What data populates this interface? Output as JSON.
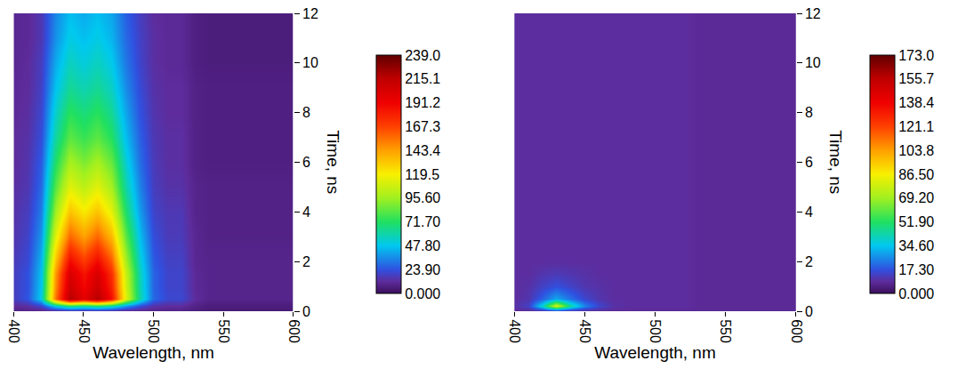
{
  "chart_data": [
    {
      "type": "heatmap",
      "x_label": "Wavelength, nm",
      "y_label": "Time, ns",
      "x": [
        400,
        410,
        420,
        430,
        440,
        450,
        460,
        470,
        480,
        490,
        500,
        510,
        520,
        530,
        540,
        550,
        560,
        570,
        580,
        590,
        600
      ],
      "y": [
        0,
        0.2,
        0.5,
        1,
        1.5,
        2,
        3,
        4,
        5,
        6,
        7,
        8,
        9,
        10,
        11,
        12
      ],
      "z": [
        [
          8,
          8,
          8,
          9,
          10,
          10,
          10,
          9,
          8,
          8,
          8,
          8,
          8,
          6,
          5,
          5,
          5,
          5,
          5,
          5,
          5
        ],
        [
          11,
          13,
          20,
          50,
          68,
          62,
          68,
          59,
          38,
          23,
          14,
          12,
          12,
          8,
          6,
          6,
          6,
          6,
          6,
          6,
          6
        ],
        [
          18,
          25,
          50,
          155,
          218,
          197,
          218,
          186,
          113,
          60,
          29,
          21,
          21,
          12,
          9,
          9,
          9,
          9,
          9,
          9,
          9
        ],
        [
          18,
          24,
          48,
          148,
          208,
          188,
          208,
          178,
          108,
          58,
          28,
          20,
          20,
          11,
          9,
          9,
          9,
          9,
          9,
          9,
          9
        ],
        [
          18,
          24,
          47,
          145,
          203,
          184,
          203,
          174,
          106,
          57,
          28,
          20,
          20,
          11,
          9,
          9,
          9,
          9,
          9,
          9,
          9
        ],
        [
          17,
          22,
          44,
          134,
          188,
          170,
          188,
          161,
          98,
          53,
          26,
          19,
          19,
          10,
          9,
          9,
          9,
          9,
          9,
          9,
          9
        ],
        [
          15,
          20,
          38,
          113,
          158,
          143,
          158,
          136,
          83,
          46,
          23,
          17,
          17,
          10,
          8,
          8,
          8,
          8,
          8,
          8,
          8
        ],
        [
          14,
          18,
          33,
          96,
          133,
          121,
          133,
          114,
          70,
          39,
          20,
          16,
          16,
          9,
          8,
          8,
          8,
          8,
          8,
          8,
          8
        ],
        [
          13,
          16,
          29,
          82,
          113,
          103,
          113,
          97,
          60,
          34,
          18,
          14,
          14,
          9,
          8,
          8,
          8,
          8,
          8,
          8,
          8
        ],
        [
          12,
          15,
          26,
          71,
          98,
          89,
          98,
          85,
          53,
          30,
          17,
          13,
          13,
          8,
          7,
          7,
          7,
          7,
          7,
          7,
          7
        ],
        [
          12,
          14,
          23,
          61,
          83,
          76,
          83,
          72,
          46,
          27,
          16,
          13,
          13,
          8,
          7,
          7,
          7,
          7,
          7,
          7,
          7
        ],
        [
          11,
          13,
          21,
          54,
          73,
          67,
          73,
          63,
          41,
          24,
          15,
          12,
          12,
          8,
          7,
          7,
          7,
          7,
          7,
          7,
          7
        ],
        [
          11,
          12,
          19,
          47,
          63,
          58,
          63,
          55,
          36,
          22,
          14,
          12,
          12,
          8,
          7,
          7,
          7,
          7,
          7,
          7,
          7
        ],
        [
          10,
          12,
          18,
          42,
          56,
          51,
          56,
          49,
          32,
          20,
          13,
          11,
          11,
          7,
          6,
          6,
          6,
          6,
          6,
          6,
          6
        ],
        [
          10,
          11,
          16,
          37,
          50,
          46,
          50,
          44,
          29,
          19,
          13,
          11,
          11,
          7,
          6,
          6,
          6,
          6,
          6,
          6,
          6
        ],
        [
          10,
          11,
          16,
          35,
          46,
          42,
          46,
          41,
          27,
          18,
          12,
          11,
          11,
          7,
          6,
          6,
          6,
          6,
          6,
          6,
          6
        ]
      ],
      "xlim": [
        400,
        600
      ],
      "xticks": [
        400,
        450,
        500,
        550,
        600
      ],
      "ylim": [
        0,
        12
      ],
      "yticks": [
        0,
        2,
        4,
        6,
        8,
        10,
        12
      ],
      "grid": true,
      "colorbar_range": [
        0,
        239
      ],
      "colorbar_ticks": [
        {
          "value": 0,
          "label": "0.000"
        },
        {
          "value": 23.9,
          "label": "23.90"
        },
        {
          "value": 47.8,
          "label": "47.80"
        },
        {
          "value": 71.7,
          "label": "71.70"
        },
        {
          "value": 95.6,
          "label": "95.60"
        },
        {
          "value": 119.5,
          "label": "119.5"
        },
        {
          "value": 143.4,
          "label": "143.4"
        },
        {
          "value": 167.3,
          "label": "167.3"
        },
        {
          "value": 191.2,
          "label": "191.2"
        },
        {
          "value": 215.1,
          "label": "215.1"
        },
        {
          "value": 239,
          "label": "239.0"
        }
      ]
    },
    {
      "type": "heatmap",
      "x_label": "Wavelength, nm",
      "y_label": "Time, ns",
      "x": [
        400,
        410,
        420,
        430,
        440,
        450,
        460,
        470,
        480,
        490,
        500,
        510,
        520,
        530,
        540,
        550,
        560,
        570,
        580,
        590,
        600
      ],
      "y": [
        0,
        0.2,
        0.5,
        1,
        1.5,
        2,
        3,
        4,
        5,
        6,
        7,
        8,
        9,
        10,
        11,
        12
      ],
      "z": [
        [
          8,
          8,
          8,
          8,
          8,
          8,
          8,
          8,
          8,
          8,
          8,
          8,
          8,
          8,
          8,
          8,
          8,
          8,
          8,
          8,
          8
        ],
        [
          10,
          14,
          40,
          80,
          45,
          25,
          15,
          10,
          9,
          9,
          9,
          9,
          9,
          8,
          8,
          8,
          8,
          8,
          8,
          8,
          8
        ],
        [
          9,
          11,
          20,
          30,
          22,
          15,
          11,
          9,
          9,
          9,
          9,
          9,
          9,
          8,
          8,
          8,
          8,
          8,
          8,
          8,
          8
        ],
        [
          9,
          10,
          14,
          17,
          14,
          11,
          10,
          9,
          9,
          9,
          9,
          9,
          9,
          8,
          8,
          8,
          8,
          8,
          8,
          8,
          8
        ],
        [
          9,
          9,
          11,
          12,
          11,
          10,
          9,
          9,
          9,
          9,
          9,
          9,
          9,
          8,
          8,
          8,
          8,
          8,
          8,
          8,
          8
        ],
        [
          9,
          9,
          9,
          9,
          9,
          9,
          9,
          9,
          9,
          9,
          9,
          9,
          9,
          8,
          8,
          8,
          8,
          8,
          8,
          8,
          8
        ],
        [
          9,
          9,
          9,
          9,
          9,
          9,
          9,
          9,
          9,
          9,
          9,
          9,
          9,
          8,
          8,
          8,
          8,
          8,
          8,
          8,
          8
        ],
        [
          9,
          9,
          9,
          9,
          9,
          9,
          9,
          9,
          9,
          9,
          9,
          9,
          9,
          8,
          8,
          8,
          8,
          8,
          8,
          8,
          8
        ],
        [
          9,
          9,
          9,
          9,
          9,
          9,
          9,
          9,
          9,
          9,
          9,
          9,
          9,
          8,
          8,
          8,
          8,
          8,
          8,
          8,
          8
        ],
        [
          9,
          9,
          9,
          9,
          9,
          9,
          9,
          9,
          9,
          9,
          9,
          9,
          9,
          8,
          8,
          8,
          8,
          8,
          8,
          8,
          8
        ],
        [
          9,
          9,
          9,
          9,
          9,
          9,
          9,
          9,
          9,
          9,
          9,
          9,
          9,
          8,
          8,
          8,
          8,
          8,
          8,
          8,
          8
        ],
        [
          9,
          9,
          9,
          9,
          9,
          9,
          9,
          9,
          9,
          9,
          9,
          9,
          9,
          8,
          8,
          8,
          8,
          8,
          8,
          8,
          8
        ],
        [
          9,
          9,
          9,
          9,
          9,
          9,
          9,
          9,
          9,
          9,
          9,
          9,
          9,
          8,
          8,
          8,
          8,
          8,
          8,
          8,
          8
        ],
        [
          9,
          9,
          9,
          9,
          9,
          9,
          9,
          9,
          9,
          9,
          9,
          9,
          9,
          8,
          8,
          8,
          8,
          8,
          8,
          8,
          8
        ],
        [
          9,
          9,
          9,
          9,
          9,
          9,
          9,
          9,
          9,
          9,
          9,
          9,
          9,
          8,
          8,
          8,
          8,
          8,
          8,
          8,
          8
        ],
        [
          9,
          9,
          9,
          9,
          9,
          9,
          9,
          9,
          9,
          9,
          9,
          9,
          9,
          8,
          8,
          8,
          8,
          8,
          8,
          8,
          8
        ]
      ],
      "xlim": [
        400,
        600
      ],
      "xticks": [
        400,
        450,
        500,
        550,
        600
      ],
      "ylim": [
        0,
        12
      ],
      "yticks": [
        0,
        2,
        4,
        6,
        8,
        10,
        12
      ],
      "grid": true,
      "colorbar_range": [
        0,
        173
      ],
      "colorbar_ticks": [
        {
          "value": 0,
          "label": "0.000"
        },
        {
          "value": 17.3,
          "label": "17.30"
        },
        {
          "value": 34.6,
          "label": "34.60"
        },
        {
          "value": 51.9,
          "label": "51.90"
        },
        {
          "value": 69.2,
          "label": "69.20"
        },
        {
          "value": 86.5,
          "label": "86.50"
        },
        {
          "value": 103.8,
          "label": "103.8"
        },
        {
          "value": 121.1,
          "label": "121.1"
        },
        {
          "value": 138.4,
          "label": "138.4"
        },
        {
          "value": 155.7,
          "label": "155.7"
        },
        {
          "value": 173,
          "label": "173.0"
        }
      ]
    }
  ]
}
